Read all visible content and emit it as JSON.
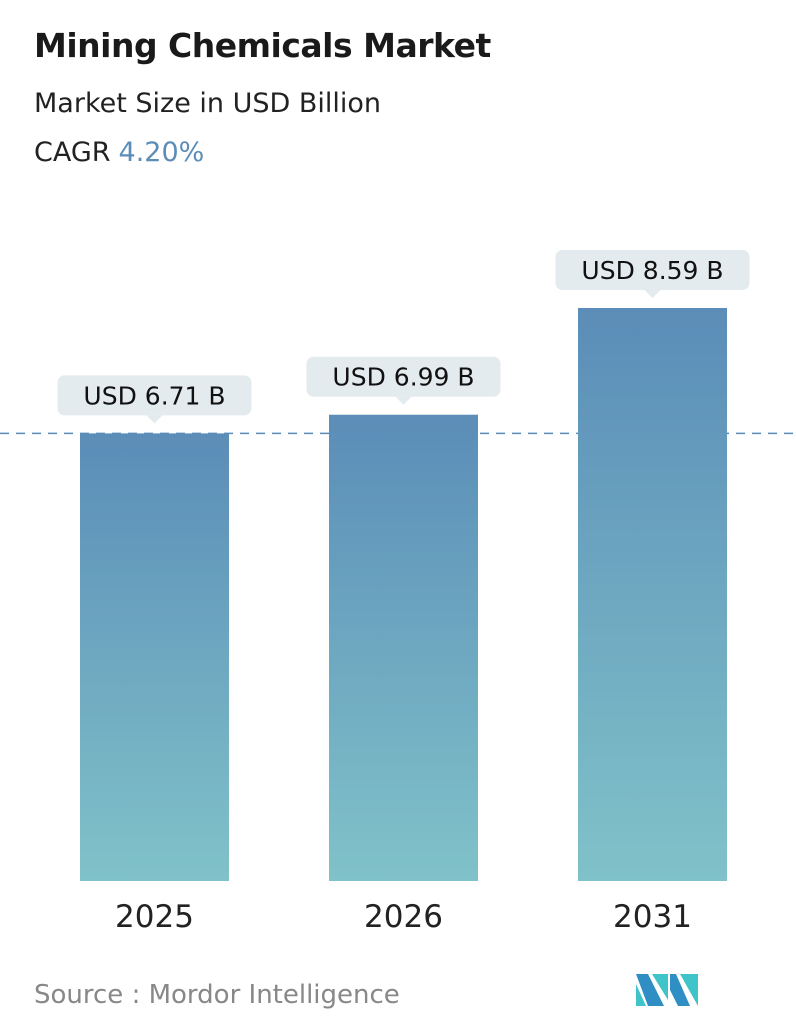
{
  "title": "Mining Chemicals Market",
  "subtitle": "Market Size in USD Billion",
  "cagr_label": "CAGR",
  "cagr_value": "4.20%",
  "source": "Source :  Mordor Intelligence",
  "logo_text": "Mordor Intelligence",
  "colors": {
    "bar_top": "#5b8db8",
    "bar_bottom": "#80c2c9",
    "accent": "#5b8db8",
    "label_bg": "#e4ebef"
  },
  "chart_data": {
    "type": "bar",
    "categories": [
      "2025",
      "2026",
      "2031"
    ],
    "values": [
      6.71,
      6.99,
      8.59
    ],
    "data_labels": [
      "USD 6.71 B",
      "USD 6.99 B",
      "USD 8.59 B"
    ],
    "title": "Mining Chemicals Market",
    "ylabel": "",
    "ylim": [
      0,
      8.59
    ],
    "reference_line": 6.71,
    "grid": false
  }
}
